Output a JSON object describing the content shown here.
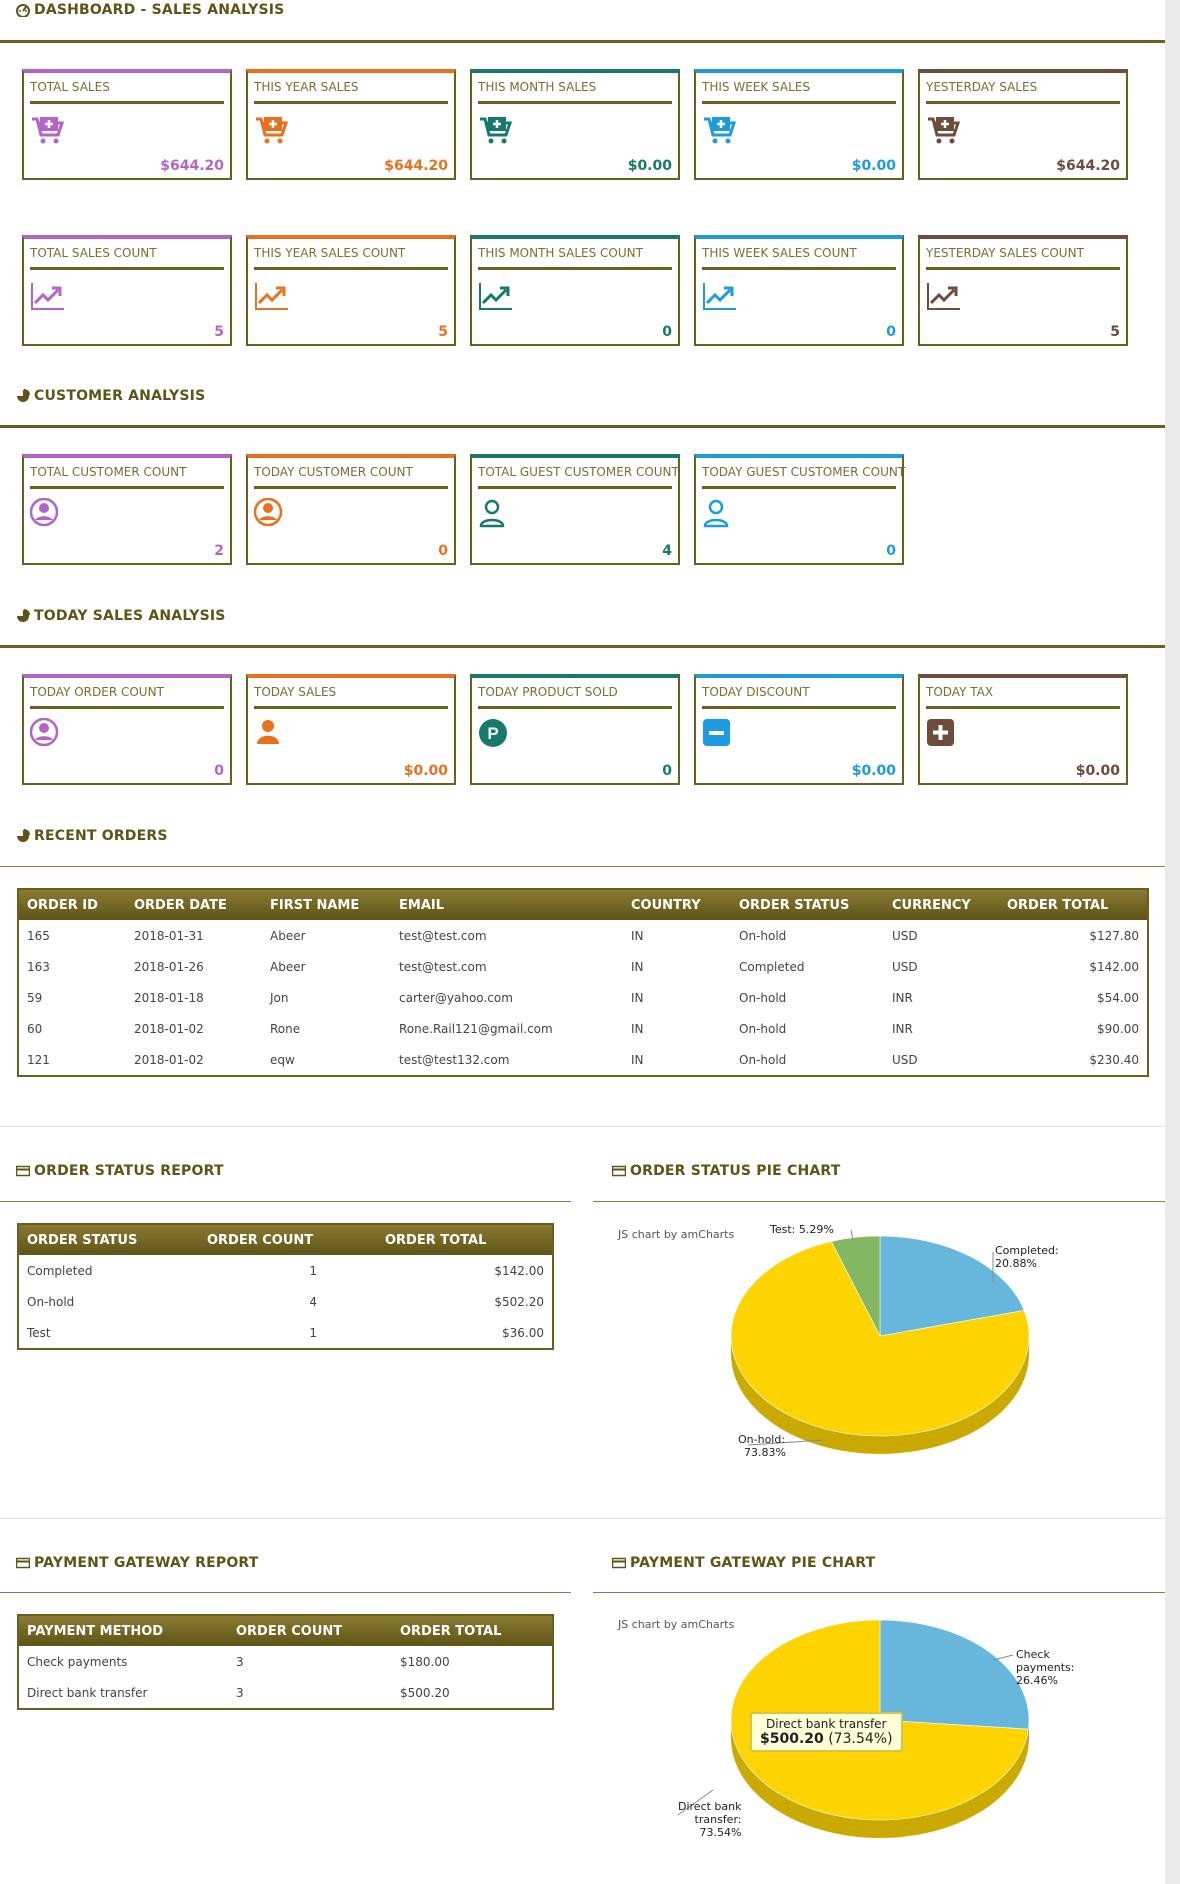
{
  "sections": {
    "sales": "DASHBOARD - SALES ANALYSIS",
    "customer": "CUSTOMER ANALYSIS",
    "today": "TODAY SALES ANALYSIS",
    "recent": "RECENT ORDERS",
    "order_status_report": "ORDER STATUS REPORT",
    "order_status_pie": "ORDER STATUS PIE CHART",
    "payment_report": "PAYMENT GATEWAY REPORT",
    "payment_pie": "PAYMENT GATEWAY PIE CHART"
  },
  "sales_cards": [
    {
      "title": "TOTAL SALES",
      "value": "$644.20",
      "color": "#b464c8"
    },
    {
      "title": "THIS YEAR SALES",
      "value": "$644.20",
      "color": "#e8701e"
    },
    {
      "title": "THIS MONTH SALES",
      "value": "$0.00",
      "color": "#167a6a"
    },
    {
      "title": "THIS WEEK SALES",
      "value": "$0.00",
      "color": "#1c9be0"
    },
    {
      "title": "YESTERDAY SALES",
      "value": "$644.20",
      "color": "#6e4b3a"
    }
  ],
  "count_cards": [
    {
      "title": "TOTAL SALES COUNT",
      "value": "5"
    },
    {
      "title": "THIS YEAR SALES COUNT",
      "value": "5"
    },
    {
      "title": "THIS MONTH SALES COUNT",
      "value": "0"
    },
    {
      "title": "THIS WEEK SALES COUNT",
      "value": "0"
    },
    {
      "title": "YESTERDAY SALES COUNT",
      "value": "5"
    }
  ],
  "customer_cards": [
    {
      "title": "TOTAL CUSTOMER COUNT",
      "value": "2"
    },
    {
      "title": "TODAY CUSTOMER COUNT",
      "value": "0"
    },
    {
      "title": "TOTAL GUEST CUSTOMER COUNT",
      "value": "4"
    },
    {
      "title": "TODAY GUEST CUSTOMER COUNT",
      "value": "0"
    }
  ],
  "today_cards": [
    {
      "title": "TODAY ORDER COUNT",
      "value": "0"
    },
    {
      "title": "TODAY SALES",
      "value": "$0.00"
    },
    {
      "title": "TODAY PRODUCT SOLD",
      "value": "0"
    },
    {
      "title": "TODAY DISCOUNT",
      "value": "$0.00"
    },
    {
      "title": "TODAY TAX",
      "value": "$0.00"
    }
  ],
  "recent_orders": {
    "headers": [
      "ORDER ID",
      "ORDER DATE",
      "FIRST NAME",
      "EMAIL",
      "COUNTRY",
      "ORDER STATUS",
      "CURRENCY",
      "ORDER TOTAL"
    ],
    "rows": [
      [
        "165",
        "2018-01-31",
        "Abeer",
        "test@test.com",
        "IN",
        "On-hold",
        "USD",
        "$127.80"
      ],
      [
        "163",
        "2018-01-26",
        "Abeer",
        "test@test.com",
        "IN",
        "Completed",
        "USD",
        "$142.00"
      ],
      [
        "59",
        "2018-01-18",
        "Jon",
        "carter@yahoo.com",
        "IN",
        "On-hold",
        "INR",
        "$54.00"
      ],
      [
        "60",
        "2018-01-02",
        "Rone",
        "Rone.Rail121@gmail.com",
        "IN",
        "On-hold",
        "INR",
        "$90.00"
      ],
      [
        "121",
        "2018-01-02",
        "eqw",
        "test@test132.com",
        "IN",
        "On-hold",
        "USD",
        "$230.40"
      ]
    ]
  },
  "order_status_report": {
    "headers": [
      "ORDER STATUS",
      "ORDER COUNT",
      "ORDER TOTAL"
    ],
    "rows": [
      [
        "Completed",
        "1",
        "$142.00"
      ],
      [
        "On-hold",
        "4",
        "$502.20"
      ],
      [
        "Test",
        "1",
        "$36.00"
      ]
    ]
  },
  "payment_report": {
    "headers": [
      "PAYMENT METHOD",
      "ORDER COUNT",
      "ORDER TOTAL"
    ],
    "rows": [
      [
        "Check payments",
        "3",
        "$180.00"
      ],
      [
        "Direct bank transfer",
        "3",
        "$500.20"
      ]
    ]
  },
  "chart_credit": "JS chart by amCharts",
  "chart_data": [
    {
      "type": "pie",
      "title": "",
      "slices": [
        {
          "label": "Completed",
          "percent": 20.88,
          "color": "#67b7dc"
        },
        {
          "label": "On-hold",
          "percent": 73.83,
          "color": "#fdd400"
        },
        {
          "label": "Test",
          "percent": 5.29,
          "color": "#84b761"
        }
      ],
      "labels": {
        "completed_1": "Completed:",
        "completed_2": "20.88%",
        "onhold_1": "On-hold:",
        "onhold_2": "73.83%",
        "test": "Test: 5.29%"
      }
    },
    {
      "type": "pie",
      "title": "",
      "slices": [
        {
          "label": "Check payments",
          "percent": 26.46,
          "color": "#67b7dc"
        },
        {
          "label": "Direct bank transfer",
          "percent": 73.54,
          "color": "#fdd400"
        }
      ],
      "labels": {
        "check_1": "Check",
        "check_2": "payments:",
        "check_3": "26.46%",
        "dbt_1": "Direct bank",
        "dbt_2": "transfer:",
        "dbt_3": "73.54%"
      },
      "tooltip": {
        "line1": "Direct bank transfer",
        "value": "$500.20",
        "pct": "(73.54%)"
      }
    }
  ],
  "colors": {
    "purple": "#b464c8",
    "orange": "#e8701e",
    "teal": "#167a6a",
    "blue": "#1c9be0",
    "brown": "#6e4b3a",
    "olive": "#6b5e1f"
  }
}
